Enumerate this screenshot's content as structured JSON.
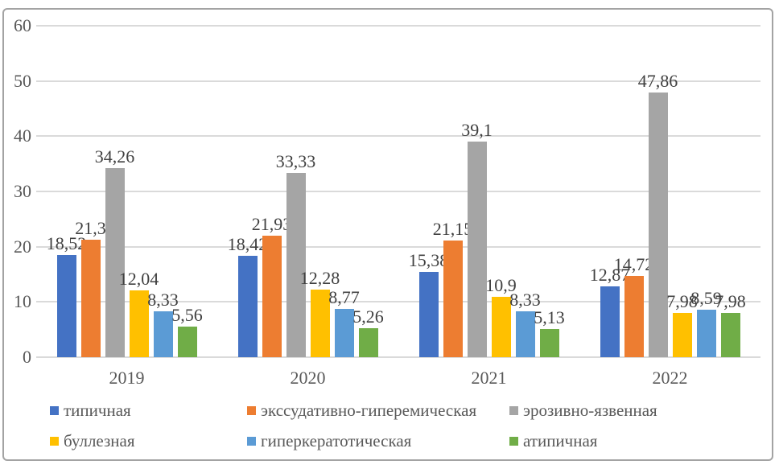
{
  "chart_data": {
    "type": "bar",
    "title": "",
    "categories": [
      "2019",
      "2020",
      "2021",
      "2022"
    ],
    "series": [
      {
        "name": "типичная",
        "color": "#4472C4",
        "values": [
          18.52,
          18.42,
          15.38,
          12.87
        ],
        "data_labels": [
          "18,52",
          "18,42",
          "15,38",
          "12,87"
        ]
      },
      {
        "name": "экссудативно-гиперемическая",
        "color": "#ED7D31",
        "values": [
          21.3,
          21.93,
          21.15,
          14.72
        ],
        "data_labels": [
          "21,3",
          "21,93",
          "21,15",
          "14,72"
        ]
      },
      {
        "name": "эрозивно-язвенная",
        "color": "#A5A5A5",
        "values": [
          34.26,
          33.33,
          39.1,
          47.86
        ],
        "data_labels": [
          "34,26",
          "33,33",
          "39,1",
          "47,86"
        ]
      },
      {
        "name": "буллезная",
        "color": "#FFC000",
        "values": [
          12.04,
          12.28,
          10.9,
          7.98
        ],
        "data_labels": [
          "12,04",
          "12,28",
          "10,9",
          "7,98"
        ]
      },
      {
        "name": "гиперкератотическая",
        "color": "#5B9BD5",
        "values": [
          8.33,
          8.77,
          8.33,
          8.59
        ],
        "data_labels": [
          "8,33",
          "8,77",
          "8,33",
          "8,59"
        ]
      },
      {
        "name": "атипичная",
        "color": "#70AD47",
        "values": [
          5.56,
          5.26,
          5.13,
          7.98
        ],
        "data_labels": [
          "5,56",
          "5,26",
          "5,13",
          "7,98"
        ]
      }
    ],
    "y_axis": {
      "min": 0,
      "max": 60,
      "step": 10,
      "tick_labels": [
        "0",
        "10",
        "20",
        "30",
        "40",
        "50",
        "60"
      ]
    },
    "x_axis": {
      "tick_labels": [
        "2019",
        "2020",
        "2021",
        "2022"
      ]
    },
    "grid": true,
    "legend_position": "bottom",
    "decimal_separator": ",",
    "colors": {
      "gridline": "#DADADA",
      "axis_text": "#595959",
      "data_label_text": "#404040",
      "frame_border": "#A3A3A3"
    }
  }
}
